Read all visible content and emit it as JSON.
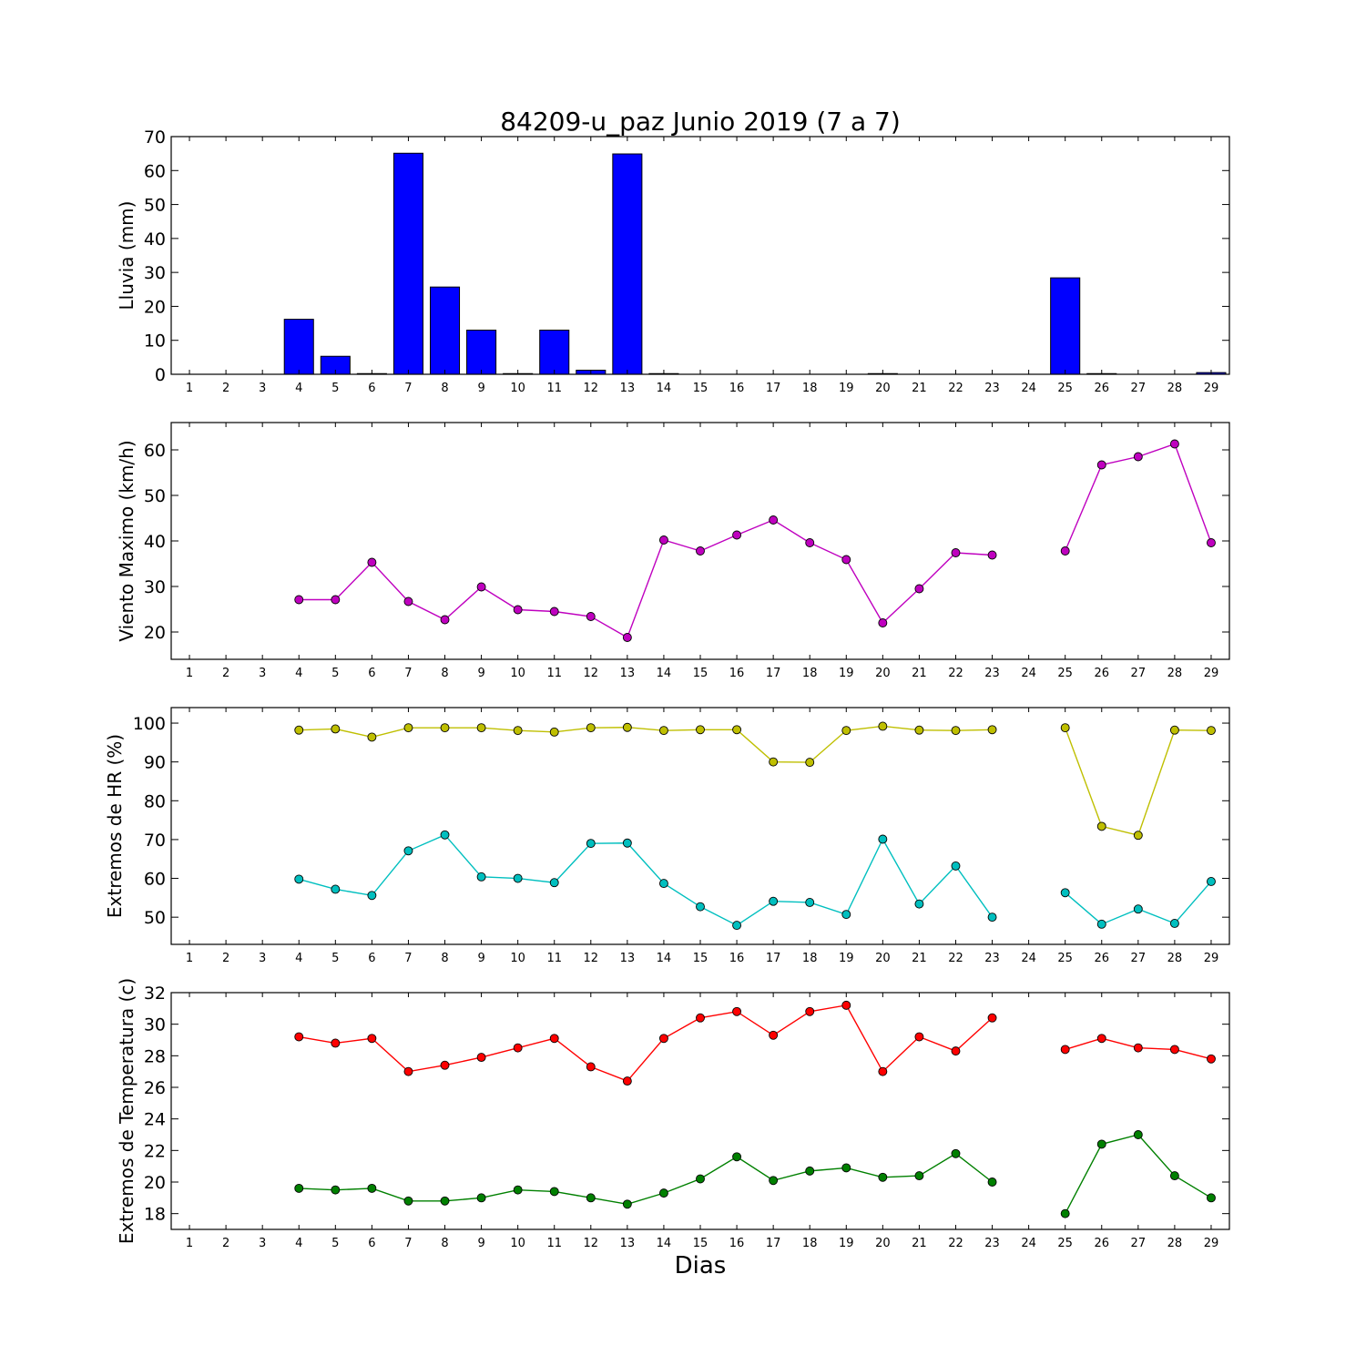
{
  "figure": {
    "title": "84209-u_paz Junio 2019  (7 a 7)",
    "xlabel": "Dias"
  },
  "chart_data": [
    {
      "type": "bar",
      "ylabel": "Lluvia (mm)",
      "ylim": [
        0,
        70
      ],
      "yticks": [
        0,
        10,
        20,
        30,
        40,
        50,
        60,
        70
      ],
      "xlim": [
        0.5,
        29.5
      ],
      "categories": [
        1,
        2,
        3,
        4,
        5,
        6,
        7,
        8,
        9,
        10,
        11,
        12,
        13,
        14,
        15,
        16,
        17,
        18,
        19,
        20,
        21,
        22,
        23,
        24,
        25,
        26,
        27,
        28,
        29
      ],
      "values": [
        0,
        0,
        0,
        16.2,
        5.3,
        0.2,
        65.1,
        25.7,
        13.0,
        0.2,
        13.0,
        1.2,
        64.9,
        0.2,
        0,
        0,
        0,
        0,
        0,
        0.2,
        0,
        0,
        0,
        0,
        28.4,
        0.2,
        0,
        0,
        0.5
      ],
      "color": "#0000ff"
    },
    {
      "type": "line",
      "ylabel": "Viento Maximo (km/h)",
      "ylim": [
        14,
        66
      ],
      "yticks": [
        20,
        30,
        40,
        50,
        60
      ],
      "xlim": [
        0.5,
        29.5
      ],
      "categories": [
        1,
        2,
        3,
        4,
        5,
        6,
        7,
        8,
        9,
        10,
        11,
        12,
        13,
        14,
        15,
        16,
        17,
        18,
        19,
        20,
        21,
        22,
        23,
        24,
        25,
        26,
        27,
        28,
        29
      ],
      "series": [
        {
          "color": "#bf00bf",
          "values": [
            null,
            null,
            null,
            27.1,
            27.1,
            35.3,
            26.7,
            22.7,
            29.9,
            24.9,
            24.5,
            23.4,
            18.8,
            40.2,
            37.8,
            41.3,
            44.6,
            39.6,
            35.9,
            22.0,
            29.5,
            37.4,
            36.9,
            null,
            37.8,
            56.7,
            58.5,
            61.3,
            39.6
          ]
        }
      ]
    },
    {
      "type": "line",
      "ylabel": "Extremos de HR (%)",
      "ylim": [
        43,
        104
      ],
      "yticks": [
        50,
        60,
        70,
        80,
        90,
        100
      ],
      "xlim": [
        0.5,
        29.5
      ],
      "categories": [
        1,
        2,
        3,
        4,
        5,
        6,
        7,
        8,
        9,
        10,
        11,
        12,
        13,
        14,
        15,
        16,
        17,
        18,
        19,
        20,
        21,
        22,
        23,
        24,
        25,
        26,
        27,
        28,
        29
      ],
      "series": [
        {
          "color": "#bfbf00",
          "values": [
            null,
            null,
            null,
            98.2,
            98.5,
            96.4,
            98.8,
            98.8,
            98.8,
            98.1,
            97.7,
            98.8,
            98.9,
            98.1,
            98.3,
            98.3,
            90.0,
            89.9,
            98.1,
            99.2,
            98.2,
            98.1,
            98.3,
            null,
            98.8,
            73.4,
            71.1,
            98.2,
            98.1
          ]
        },
        {
          "color": "#00bfbf",
          "values": [
            null,
            null,
            null,
            59.8,
            57.2,
            55.6,
            67.1,
            71.2,
            60.4,
            60.0,
            58.9,
            69.0,
            69.1,
            58.7,
            52.7,
            47.9,
            54.1,
            53.8,
            50.7,
            70.1,
            53.4,
            63.2,
            50.0,
            null,
            56.3,
            48.2,
            52.1,
            48.4,
            59.2
          ]
        }
      ]
    },
    {
      "type": "line",
      "ylabel": "Extremos de Temperatura (c)",
      "ylim": [
        17,
        32
      ],
      "yticks": [
        18,
        20,
        22,
        24,
        26,
        28,
        30,
        32
      ],
      "xlim": [
        0.5,
        29.5
      ],
      "categories": [
        1,
        2,
        3,
        4,
        5,
        6,
        7,
        8,
        9,
        10,
        11,
        12,
        13,
        14,
        15,
        16,
        17,
        18,
        19,
        20,
        21,
        22,
        23,
        24,
        25,
        26,
        27,
        28,
        29
      ],
      "series": [
        {
          "color": "#ff0000",
          "values": [
            null,
            null,
            null,
            29.2,
            28.8,
            29.1,
            27.0,
            27.4,
            27.9,
            28.5,
            29.1,
            27.3,
            26.4,
            29.1,
            30.4,
            30.8,
            29.3,
            30.8,
            31.2,
            27.0,
            29.2,
            28.3,
            30.4,
            null,
            28.4,
            29.1,
            28.5,
            28.4,
            27.8
          ]
        },
        {
          "color": "#008000",
          "values": [
            null,
            null,
            null,
            19.6,
            19.5,
            19.6,
            18.8,
            18.8,
            19.0,
            19.5,
            19.4,
            19.0,
            18.6,
            19.3,
            20.2,
            21.6,
            20.1,
            20.7,
            20.9,
            20.3,
            20.4,
            21.8,
            20.0,
            null,
            18.0,
            22.4,
            23.0,
            20.4,
            19.0
          ]
        }
      ]
    }
  ]
}
